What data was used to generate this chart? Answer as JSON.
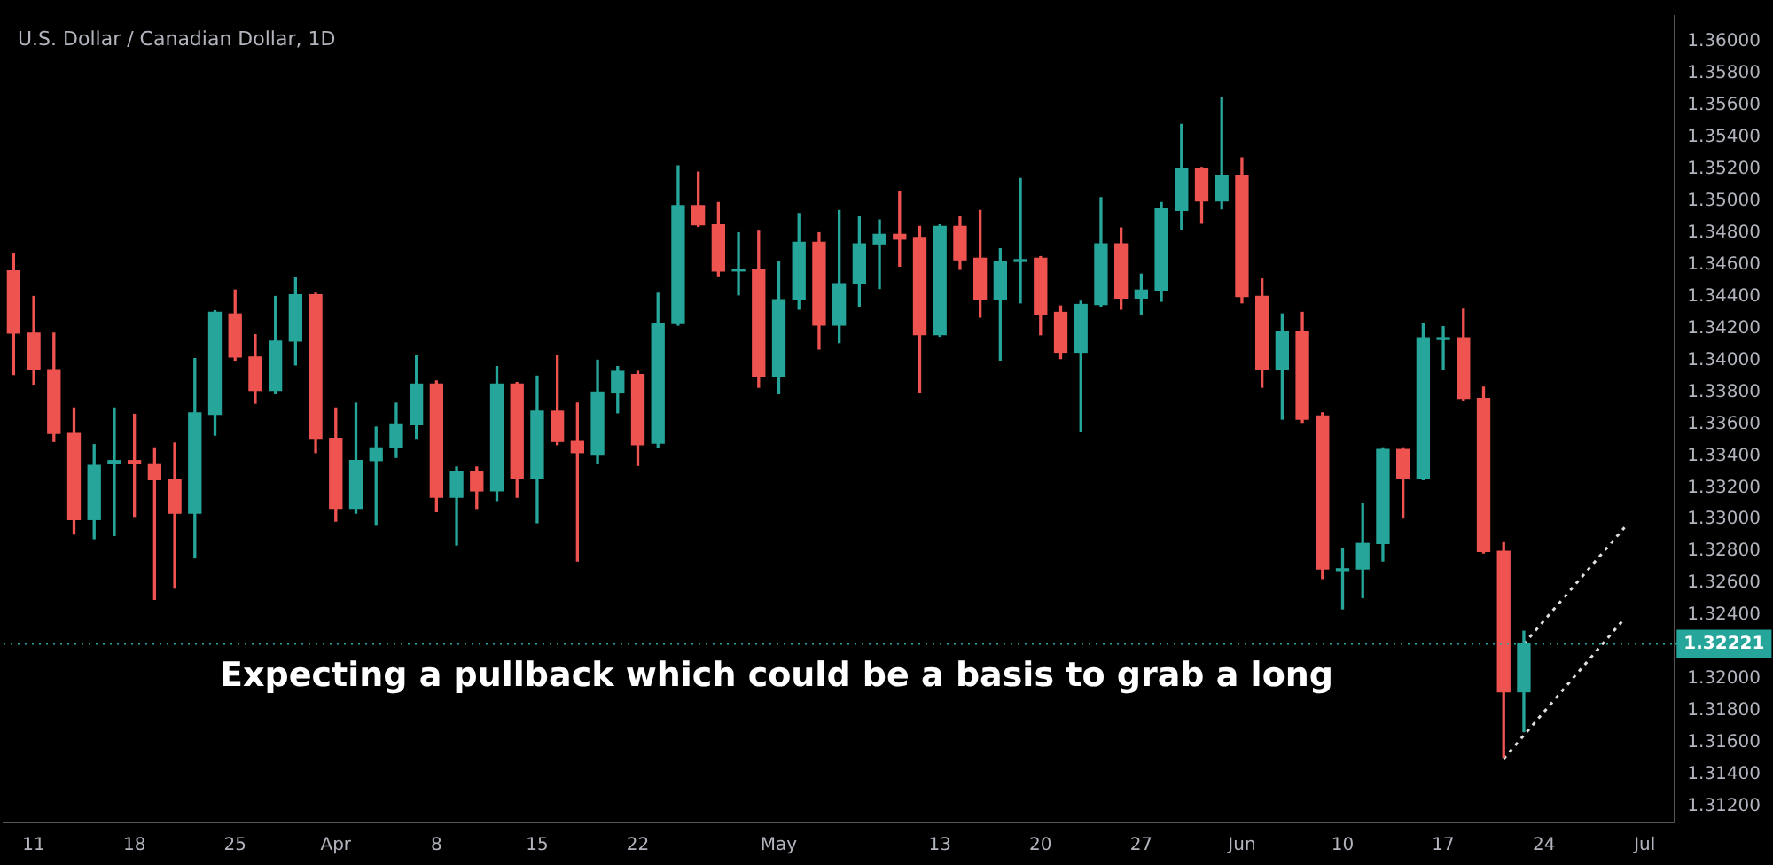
{
  "chart_data": {
    "type": "candlestick",
    "title": "U.S. Dollar / Canadian Dollar, 1D",
    "categories": [
      null,
      "11",
      null,
      null,
      null,
      null,
      "18",
      null,
      null,
      null,
      null,
      "25",
      null,
      null,
      null,
      null,
      "Apr",
      null,
      null,
      null,
      null,
      "8",
      null,
      null,
      null,
      null,
      "15",
      null,
      null,
      null,
      null,
      "22",
      null,
      null,
      null,
      null,
      null,
      null,
      "May",
      null,
      null,
      null,
      null,
      null,
      null,
      null,
      "13",
      null,
      null,
      null,
      null,
      "20",
      null,
      null,
      null,
      null,
      "27",
      null,
      null,
      null,
      null,
      "Jun",
      null,
      null,
      null,
      null,
      "10",
      null,
      null,
      null,
      null,
      "17",
      null,
      null,
      null,
      null,
      "24",
      null,
      null,
      null,
      null,
      "Jul",
      null
    ],
    "ohlc": [
      [
        1.3456,
        1.3467,
        1.3391,
        1.3417
      ],
      [
        1.3417,
        1.344,
        1.3385,
        1.3394
      ],
      [
        1.3394,
        1.3417,
        1.3349,
        1.3354
      ],
      [
        1.3354,
        1.337,
        1.3291,
        1.33
      ],
      [
        1.33,
        1.3347,
        1.3288,
        1.3334
      ],
      [
        1.3335,
        1.337,
        1.329,
        1.3337
      ],
      [
        1.3337,
        1.3366,
        1.3302,
        1.3335
      ],
      [
        1.3335,
        1.3345,
        1.325,
        1.3325
      ],
      [
        1.3325,
        1.3348,
        1.3257,
        1.3304
      ],
      [
        1.3304,
        1.3401,
        1.3276,
        1.3367
      ],
      [
        1.3366,
        1.3431,
        1.3353,
        1.343
      ],
      [
        1.3429,
        1.3444,
        1.34,
        1.3402
      ],
      [
        1.3402,
        1.3416,
        1.3373,
        1.3381
      ],
      [
        1.3381,
        1.344,
        1.3379,
        1.3412
      ],
      [
        1.3412,
        1.3452,
        1.3397,
        1.3441
      ],
      [
        1.3441,
        1.3442,
        1.3342,
        1.3351
      ],
      [
        1.3351,
        1.337,
        1.3299,
        1.3307
      ],
      [
        1.3307,
        1.3373,
        1.3304,
        1.3337
      ],
      [
        1.3337,
        1.3358,
        1.3297,
        1.3345
      ],
      [
        1.3345,
        1.3373,
        1.3339,
        1.336
      ],
      [
        1.336,
        1.3403,
        1.3351,
        1.3385
      ],
      [
        1.3385,
        1.3387,
        1.3305,
        1.3314
      ],
      [
        1.3314,
        1.3333,
        1.3284,
        1.333
      ],
      [
        1.333,
        1.3333,
        1.3307,
        1.3318
      ],
      [
        1.3318,
        1.3396,
        1.3312,
        1.3385
      ],
      [
        1.3385,
        1.3386,
        1.3314,
        1.3326
      ],
      [
        1.3326,
        1.339,
        1.3298,
        1.3368
      ],
      [
        1.3368,
        1.3403,
        1.3347,
        1.3349
      ],
      [
        1.3349,
        1.3373,
        1.3274,
        1.3342
      ],
      [
        1.3341,
        1.34,
        1.3335,
        1.338
      ],
      [
        1.338,
        1.3396,
        1.3367,
        1.3393
      ],
      [
        1.3391,
        1.3393,
        1.3334,
        1.3347
      ],
      [
        1.3348,
        1.3442,
        1.3345,
        1.3423
      ],
      [
        1.3423,
        1.3522,
        1.3422,
        1.3497
      ],
      [
        1.3497,
        1.3518,
        1.3484,
        1.3485
      ],
      [
        1.3485,
        1.3499,
        1.3453,
        1.3456
      ],
      [
        1.3456,
        1.348,
        1.3441,
        1.3457
      ],
      [
        1.3457,
        1.3481,
        1.3383,
        1.339
      ],
      [
        1.339,
        1.3462,
        1.3379,
        1.3438
      ],
      [
        1.3438,
        1.3492,
        1.3432,
        1.3474
      ],
      [
        1.3474,
        1.348,
        1.3407,
        1.3422
      ],
      [
        1.3422,
        1.3494,
        1.3411,
        1.3448
      ],
      [
        1.3448,
        1.349,
        1.3434,
        1.3473
      ],
      [
        1.3473,
        1.3488,
        1.3445,
        1.3479
      ],
      [
        1.3479,
        1.3506,
        1.3459,
        1.3476
      ],
      [
        1.3477,
        1.3484,
        1.338,
        1.3416
      ],
      [
        1.3416,
        1.3485,
        1.3415,
        1.3484
      ],
      [
        1.3484,
        1.349,
        1.3457,
        1.3463
      ],
      [
        1.3464,
        1.3494,
        1.3427,
        1.3438
      ],
      [
        1.3438,
        1.347,
        1.34,
        1.3462
      ],
      [
        1.3462,
        1.3514,
        1.3436,
        1.3463
      ],
      [
        1.3464,
        1.3465,
        1.3416,
        1.3429
      ],
      [
        1.343,
        1.3434,
        1.3401,
        1.3405
      ],
      [
        1.3405,
        1.3437,
        1.3355,
        1.3435
      ],
      [
        1.3435,
        1.3502,
        1.3434,
        1.3473
      ],
      [
        1.3473,
        1.3483,
        1.3432,
        1.3439
      ],
      [
        1.3439,
        1.3454,
        1.3429,
        1.3444
      ],
      [
        1.3444,
        1.3499,
        1.3437,
        1.3495
      ],
      [
        1.3494,
        1.3548,
        1.3482,
        1.352
      ],
      [
        1.352,
        1.3521,
        1.3486,
        1.35
      ],
      [
        1.35,
        1.3565,
        1.3495,
        1.3516
      ],
      [
        1.3516,
        1.3527,
        1.3436,
        1.344
      ],
      [
        1.344,
        1.3451,
        1.3383,
        1.3394
      ],
      [
        1.3394,
        1.3429,
        1.3363,
        1.3418
      ],
      [
        1.3418,
        1.343,
        1.3361,
        1.3363
      ],
      [
        1.3365,
        1.3367,
        1.3263,
        1.3269
      ],
      [
        1.3268,
        1.3282,
        1.3244,
        1.3269
      ],
      [
        1.3269,
        1.331,
        1.3251,
        1.3285
      ],
      [
        1.3285,
        1.3345,
        1.3274,
        1.3344
      ],
      [
        1.3344,
        1.3345,
        1.3301,
        1.3326
      ],
      [
        1.3326,
        1.3423,
        1.3325,
        1.3414
      ],
      [
        1.3413,
        1.3421,
        1.3394,
        1.3414
      ],
      [
        1.3414,
        1.3432,
        1.3375,
        1.3376
      ],
      [
        1.3376,
        1.3383,
        1.3279,
        1.328
      ],
      [
        1.328,
        1.3286,
        1.3151,
        1.3192
      ],
      [
        1.3192,
        1.323,
        1.3167,
        1.3222
      ],
      null,
      null,
      null,
      null,
      null,
      null,
      null
    ],
    "colors": [
      "#ef5350",
      "#ef5350",
      "#ef5350",
      "#ef5350",
      "#26a69a",
      "#26a69a",
      "#ef5350",
      "#ef5350",
      "#ef5350",
      "#26a69a",
      "#26a69a",
      "#ef5350",
      "#ef5350",
      "#26a69a",
      "#26a69a",
      "#ef5350",
      "#ef5350",
      "#26a69a",
      "#26a69a",
      "#26a69a",
      "#26a69a",
      "#ef5350",
      "#26a69a",
      "#ef5350",
      "#26a69a",
      "#ef5350",
      "#26a69a",
      "#ef5350",
      "#ef5350",
      "#26a69a",
      "#26a69a",
      "#ef5350",
      "#26a69a",
      "#26a69a",
      "#ef5350",
      "#ef5350",
      "#26a69a",
      "#ef5350",
      "#26a69a",
      "#26a69a",
      "#ef5350",
      "#26a69a",
      "#26a69a",
      "#26a69a",
      "#ef5350",
      "#ef5350",
      "#26a69a",
      "#ef5350",
      "#ef5350",
      "#26a69a",
      "#26a69a",
      "#ef5350",
      "#ef5350",
      "#26a69a",
      "#26a69a",
      "#ef5350",
      "#26a69a",
      "#26a69a",
      "#26a69a",
      "#ef5350",
      "#26a69a",
      "#ef5350",
      "#ef5350",
      "#26a69a",
      "#ef5350",
      "#ef5350",
      "#26a69a",
      "#26a69a",
      "#26a69a",
      "#ef5350",
      "#26a69a",
      "#26a69a",
      "#ef5350",
      "#ef5350",
      "#ef5350",
      "#26a69a",
      null,
      null,
      null,
      null,
      null,
      null,
      null
    ],
    "series": [
      {
        "type": "line",
        "color": "#e0e0e0",
        "line_style": "dotted",
        "marker": "none",
        "values": [
          null,
          null,
          null,
          null,
          null,
          null,
          null,
          null,
          null,
          null,
          null,
          null,
          null,
          null,
          null,
          null,
          null,
          null,
          null,
          null,
          null,
          null,
          null,
          null,
          null,
          null,
          null,
          null,
          null,
          null,
          null,
          null,
          null,
          null,
          null,
          null,
          null,
          null,
          null,
          null,
          null,
          null,
          null,
          null,
          null,
          null,
          null,
          null,
          null,
          null,
          null,
          null,
          null,
          null,
          null,
          null,
          null,
          null,
          null,
          null,
          null,
          null,
          null,
          null,
          null,
          null,
          null,
          null,
          null,
          null,
          null,
          null,
          null,
          null,
          null,
          1.3222,
          null,
          null,
          null,
          null,
          1.3295,
          null,
          null
        ]
      },
      {
        "type": "line",
        "color": "#e0e0e0",
        "line_style": "dotted",
        "marker": "none",
        "values": [
          null,
          null,
          null,
          null,
          null,
          null,
          null,
          null,
          null,
          null,
          null,
          null,
          null,
          null,
          null,
          null,
          null,
          null,
          null,
          null,
          null,
          null,
          null,
          null,
          null,
          null,
          null,
          null,
          null,
          null,
          null,
          null,
          null,
          null,
          null,
          null,
          null,
          null,
          null,
          null,
          null,
          null,
          null,
          null,
          null,
          null,
          null,
          null,
          null,
          null,
          null,
          null,
          null,
          null,
          null,
          null,
          null,
          null,
          null,
          null,
          null,
          null,
          null,
          null,
          null,
          null,
          null,
          null,
          null,
          null,
          null,
          null,
          null,
          null,
          1.315,
          null,
          null,
          null,
          null,
          null,
          1.3238,
          null,
          null
        ]
      }
    ],
    "ylim": [
      1.311,
      1.3616
    ],
    "yticks": [
      {
        "value": 1.312,
        "label": "1.31200"
      },
      {
        "value": 1.314,
        "label": "1.31400"
      },
      {
        "value": 1.316,
        "label": "1.31600"
      },
      {
        "value": 1.318,
        "label": "1.31800"
      },
      {
        "value": 1.32,
        "label": "1.32000"
      },
      {
        "value": 1.324,
        "label": "1.32400"
      },
      {
        "value": 1.326,
        "label": "1.32600"
      },
      {
        "value": 1.328,
        "label": "1.32800"
      },
      {
        "value": 1.33,
        "label": "1.33000"
      },
      {
        "value": 1.332,
        "label": "1.33200"
      },
      {
        "value": 1.334,
        "label": "1.33400"
      },
      {
        "value": 1.336,
        "label": "1.33600"
      },
      {
        "value": 1.338,
        "label": "1.33800"
      },
      {
        "value": 1.34,
        "label": "1.34000"
      },
      {
        "value": 1.342,
        "label": "1.34200"
      },
      {
        "value": 1.344,
        "label": "1.34400"
      },
      {
        "value": 1.346,
        "label": "1.34600"
      },
      {
        "value": 1.348,
        "label": "1.34800"
      },
      {
        "value": 1.35,
        "label": "1.35000"
      },
      {
        "value": 1.352,
        "label": "1.35200"
      },
      {
        "value": 1.354,
        "label": "1.35400"
      },
      {
        "value": 1.356,
        "label": "1.35600"
      },
      {
        "value": 1.358,
        "label": "1.35800"
      },
      {
        "value": 1.36,
        "label": "1.36000"
      }
    ],
    "ref_lines": [
      {
        "axis": "y",
        "value": 1.32221,
        "label": "1.32221",
        "color": "#26a69a"
      }
    ],
    "annotations": [
      "Expecting a pullback which could be a basis to grab a long"
    ]
  }
}
